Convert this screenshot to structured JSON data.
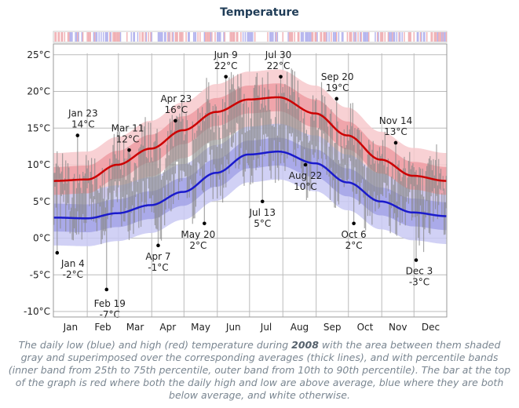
{
  "title": "Temperature",
  "caption": {
    "part1": "The daily low (blue) and high (red) temperature during ",
    "year": "2008",
    "part2": " with the area between them shaded gray and superimposed over the corresponding averages (thick lines), and with percentile bands (inner band from 25th to 75th percentile, outer band from 10th to 90th percentile). The bar at the top of the graph is red where both the daily high and low are above average, blue where they are both below average, and white otherwise."
  },
  "colors": {
    "high": "#cc0000",
    "low": "#1a1acc",
    "high_band_outer": "#f7c9cc",
    "high_band_inner": "#ee9ea3",
    "low_band_outer": "#c9c9f3",
    "low_band_inner": "#a3a3e6",
    "overlap": "#b9b2bd",
    "daily_bar": "#888888",
    "grid": "#bbbbbb"
  },
  "chart_data": {
    "type": "area",
    "units": "°C",
    "ylim": [
      -11,
      26
    ],
    "y_ticks": [
      -10,
      -5,
      0,
      5,
      10,
      15,
      20,
      25
    ],
    "y_tick_labels": [
      "-10°C",
      "-5°C",
      "0°C",
      "5°C",
      "10°C",
      "15°C",
      "20°C",
      "25°C"
    ],
    "months": [
      "Jan",
      "Feb",
      "Mar",
      "Apr",
      "May",
      "Jun",
      "Jul",
      "Aug",
      "Sep",
      "Oct",
      "Nov",
      "Dec"
    ],
    "average_high": {
      "x_day": [
        1,
        32,
        60,
        91,
        121,
        152,
        182,
        210,
        244,
        274,
        305,
        335,
        366
      ],
      "values": [
        7.8,
        8.0,
        10.0,
        12.2,
        14.7,
        17.2,
        18.9,
        19.2,
        17.0,
        14.0,
        10.7,
        8.5,
        7.8
      ]
    },
    "average_low": {
      "x_day": [
        1,
        32,
        60,
        91,
        121,
        152,
        182,
        210,
        244,
        274,
        305,
        335,
        366
      ],
      "values": [
        2.8,
        2.7,
        3.4,
        4.5,
        6.3,
        8.9,
        11.4,
        11.8,
        10.2,
        7.6,
        5.0,
        3.5,
        3.0
      ]
    },
    "annotations": [
      {
        "kind": "max",
        "day": 23,
        "date": "Jan 23",
        "value": 14,
        "label": "14°C"
      },
      {
        "kind": "min",
        "day": 4,
        "date": "Jan 4",
        "value": -2,
        "label": "-2°C"
      },
      {
        "kind": "min",
        "day": 50,
        "date": "Feb 19",
        "value": -7,
        "label": "-7°C"
      },
      {
        "kind": "max",
        "day": 71,
        "date": "Mar 11",
        "value": 12,
        "label": "12°C"
      },
      {
        "kind": "min",
        "day": 98,
        "date": "Apr 7",
        "value": -1,
        "label": "-1°C"
      },
      {
        "kind": "max",
        "day": 114,
        "date": "Apr 23",
        "value": 16,
        "label": "16°C"
      },
      {
        "kind": "min",
        "day": 141,
        "date": "May 20",
        "value": 2,
        "label": "2°C"
      },
      {
        "kind": "max",
        "day": 161,
        "date": "Jun 9",
        "value": 22,
        "label": "22°C"
      },
      {
        "kind": "min",
        "day": 195,
        "date": "Jul 13",
        "value": 5,
        "label": "5°C"
      },
      {
        "kind": "max",
        "day": 212,
        "date": "Jul 30",
        "value": 22,
        "label": "22°C"
      },
      {
        "kind": "min",
        "day": 235,
        "date": "Aug 22",
        "value": 10,
        "label": "10°C"
      },
      {
        "kind": "max",
        "day": 264,
        "date": "Sep 20",
        "value": 19,
        "label": "19°C"
      },
      {
        "kind": "min",
        "day": 280,
        "date": "Oct 6",
        "value": 2,
        "label": "2°C"
      },
      {
        "kind": "max",
        "day": 319,
        "date": "Nov 14",
        "value": 13,
        "label": "13°C"
      },
      {
        "kind": "min",
        "day": 338,
        "date": "Dec 3",
        "value": -3,
        "label": "-3°C"
      }
    ]
  }
}
